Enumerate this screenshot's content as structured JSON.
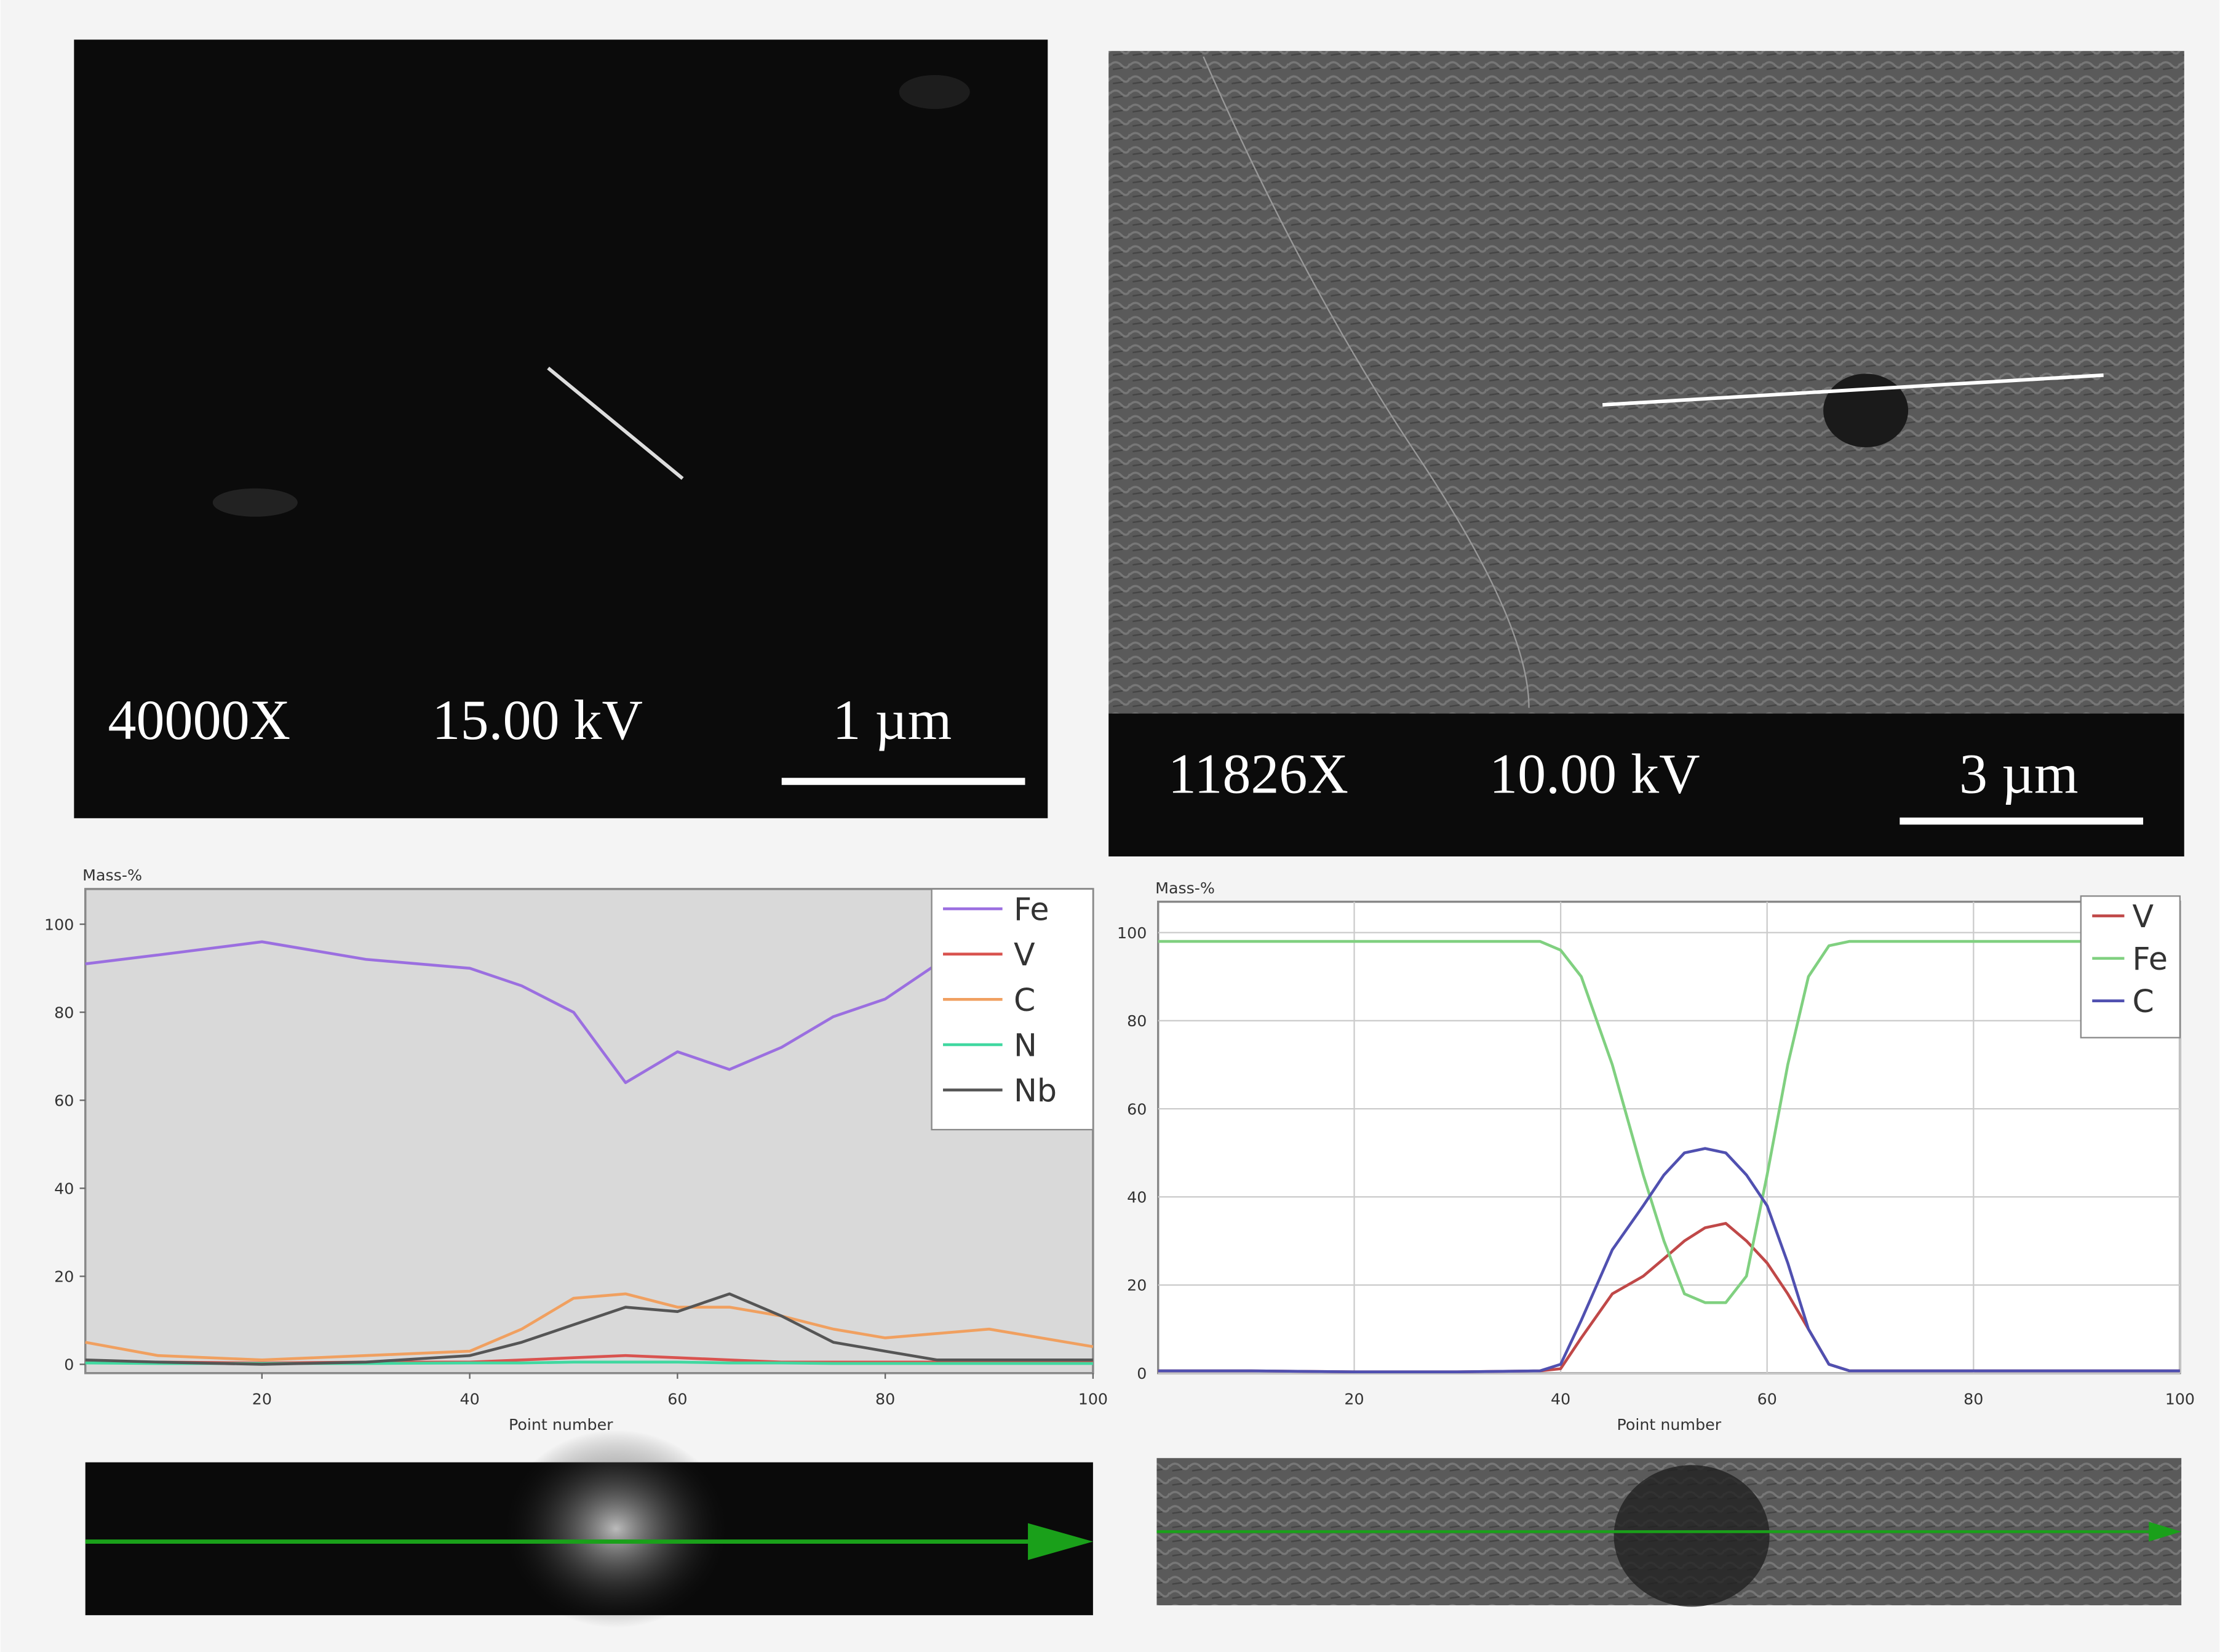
{
  "micrographs": [
    {
      "magnification": "40000X",
      "voltage": "15.00 kV",
      "scale_bar": "1 µm"
    },
    {
      "magnification": "11826X",
      "voltage": "10.00 kV",
      "scale_bar": "3 µm"
    }
  ],
  "chart_data": [
    {
      "type": "line",
      "y_label": "Mass-%",
      "x_label": "Point number",
      "x": [
        3,
        10,
        20,
        30,
        40,
        45,
        50,
        55,
        60,
        65,
        70,
        75,
        80,
        85,
        90,
        95,
        100
      ],
      "xlim": [
        3,
        100
      ],
      "xticks": [
        20,
        40,
        60,
        80,
        100
      ],
      "ylim": [
        -2,
        108
      ],
      "yticks": [
        0,
        20,
        40,
        60,
        80,
        100
      ],
      "grid": false,
      "background": "#d9d9d9",
      "legend": "upper-right",
      "series": [
        {
          "name": "Fe",
          "color": "#9b6fe0",
          "values": [
            91,
            93,
            96,
            92,
            90,
            86,
            80,
            64,
            71,
            67,
            72,
            79,
            83,
            91,
            null,
            null,
            null
          ]
        },
        {
          "name": "V",
          "color": "#d9534f",
          "values": [
            0.5,
            0.5,
            0.3,
            0.5,
            0.5,
            1,
            1.5,
            2,
            1.5,
            1,
            0.5,
            0.5,
            0.5,
            0.5,
            0.5,
            0.5,
            0.5
          ]
        },
        {
          "name": "C",
          "color": "#f0a060",
          "values": [
            5,
            2,
            1,
            2,
            3,
            8,
            15,
            16,
            13,
            13,
            11,
            8,
            6,
            7,
            8,
            6,
            4
          ]
        },
        {
          "name": "N",
          "color": "#40d8a0",
          "values": [
            0.3,
            0.2,
            0.2,
            0.2,
            0.3,
            0.3,
            0.5,
            0.5,
            0.5,
            0.3,
            0.3,
            0.2,
            0.2,
            0.2,
            0.2,
            0.2,
            0.2
          ]
        },
        {
          "name": "Nb",
          "color": "#555555",
          "values": [
            1,
            0.5,
            0,
            0.5,
            2,
            5,
            9,
            13,
            12,
            16,
            11,
            5,
            3,
            1,
            1,
            1,
            1
          ]
        }
      ]
    },
    {
      "type": "line",
      "y_label": "Mass-%",
      "x_label": "Point number",
      "x": [
        1,
        10,
        20,
        30,
        38,
        40,
        42,
        45,
        48,
        50,
        52,
        54,
        56,
        58,
        60,
        62,
        64,
        66,
        68,
        70,
        80,
        90,
        100
      ],
      "xlim": [
        1,
        100
      ],
      "xticks": [
        20,
        40,
        60,
        80,
        100
      ],
      "ylim": [
        0,
        107
      ],
      "yticks": [
        0,
        20,
        40,
        60,
        80,
        100
      ],
      "grid": true,
      "background": "#ffffff",
      "legend": "upper-right",
      "series": [
        {
          "name": "V",
          "color": "#c04848",
          "values": [
            0.5,
            0.5,
            0.3,
            0.3,
            0.5,
            1,
            8,
            18,
            22,
            26,
            30,
            33,
            34,
            30,
            25,
            18,
            10,
            2,
            0.5,
            0.5,
            0.5,
            0.5,
            0.5
          ]
        },
        {
          "name": "Fe",
          "color": "#80d080",
          "values": [
            98,
            98,
            98,
            98,
            98,
            96,
            90,
            70,
            45,
            30,
            18,
            16,
            16,
            22,
            45,
            70,
            90,
            97,
            98,
            98,
            98,
            98,
            98
          ]
        },
        {
          "name": "C",
          "color": "#5050b0",
          "values": [
            0.5,
            0.5,
            0.3,
            0.3,
            0.5,
            2,
            12,
            28,
            38,
            45,
            50,
            51,
            50,
            45,
            38,
            25,
            10,
            2,
            0.5,
            0.5,
            0.5,
            0.5,
            0.5
          ]
        }
      ]
    }
  ]
}
